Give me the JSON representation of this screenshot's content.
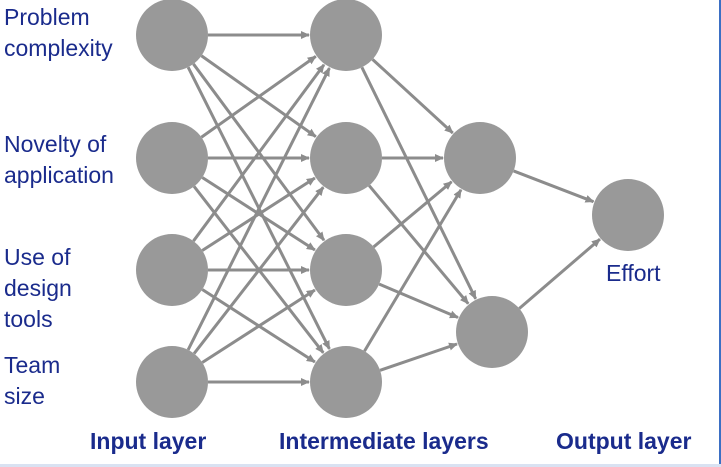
{
  "inputs": [
    {
      "label": "Problem\ncomplexity"
    },
    {
      "label": "Novelty of\napplication"
    },
    {
      "label": "Use of\ndesign\ntools"
    },
    {
      "label": "Team\nsize"
    }
  ],
  "output": {
    "label": "Effort"
  },
  "layers": {
    "input": "Input layer",
    "intermediate": "Intermediate layers",
    "output": "Output layer"
  },
  "colors": {
    "node": "#999999",
    "edge": "#8c8c8c",
    "text": "#1a2b8c"
  },
  "network": {
    "layer_sizes": [
      4,
      4,
      2,
      1
    ],
    "connections": "fully-connected"
  }
}
